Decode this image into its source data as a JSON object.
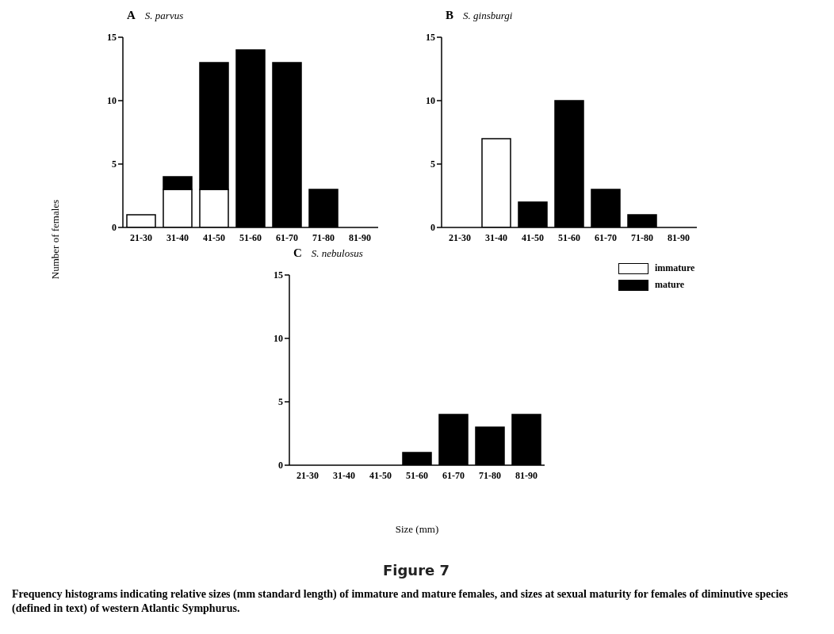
{
  "chart_data": [
    {
      "type": "bar",
      "title": "A",
      "subtitle": "S. parvus",
      "ylabel": "Number of females",
      "categories": [
        "21-30",
        "31-40",
        "41-50",
        "51-60",
        "61-70",
        "71-80",
        "81-90"
      ],
      "stacked": true,
      "ylim": [
        0,
        15
      ],
      "yticks": [
        0,
        5,
        10,
        15
      ],
      "series": [
        {
          "color": "#ffffff",
          "values": [
            1,
            3,
            3,
            0,
            0,
            0,
            0
          ]
        },
        {
          "color": "#000000",
          "values": [
            0,
            1,
            10,
            14,
            13,
            3,
            0
          ]
        }
      ]
    },
    {
      "type": "bar",
      "title": "B",
      "subtitle": "S. ginsburgi",
      "categories": [
        "21-30",
        "31-40",
        "41-50",
        "51-60",
        "61-70",
        "71-80",
        "81-90"
      ],
      "stacked": true,
      "ylim": [
        0,
        15
      ],
      "yticks": [
        0,
        5,
        10,
        15
      ],
      "series": [
        {
          "color": "#ffffff",
          "values": [
            0,
            7,
            0,
            0,
            0,
            0,
            0
          ]
        },
        {
          "color": "#000000",
          "values": [
            0,
            0,
            2,
            10,
            3,
            1,
            0
          ]
        }
      ]
    },
    {
      "type": "bar",
      "title": "C",
      "subtitle": "S. nebulosus",
      "xlabel": "Size (mm)",
      "categories": [
        "21-30",
        "31-40",
        "41-50",
        "51-60",
        "61-70",
        "71-80",
        "81-90"
      ],
      "stacked": true,
      "ylim": [
        0,
        15
      ],
      "yticks": [
        0,
        5,
        10,
        15
      ],
      "legend": "right",
      "series": [
        {
          "name": "immature",
          "color": "#ffffff",
          "values": [
            0,
            0,
            0,
            0,
            0,
            0,
            0
          ]
        },
        {
          "name": "mature",
          "color": "#000000",
          "values": [
            0,
            0,
            0,
            1,
            4,
            3,
            4
          ]
        }
      ],
      "annotations": [
        "Figure 7",
        "Frequency histograms indicating relative sizes (mm standard length) of immature and mature females, and sizes at sexual maturity for females of diminutive species (defined in text) of western Atlantic Symphurus."
      ]
    }
  ]
}
